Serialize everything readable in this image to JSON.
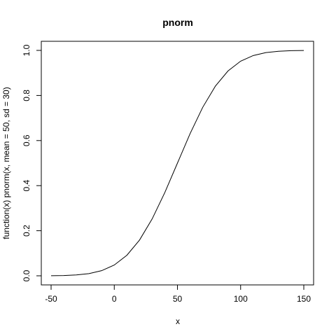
{
  "chart_data": {
    "type": "line",
    "title": "pnorm",
    "xlabel": "x",
    "ylabel": "function(x) pnorm(x, mean = 50, sd = 30)",
    "xlim": [
      -50,
      150
    ],
    "ylim": [
      0,
      1
    ],
    "x_ticks": [
      -50,
      0,
      50,
      100,
      150
    ],
    "y_ticks": [
      0.0,
      0.2,
      0.4,
      0.6,
      0.8,
      1.0
    ],
    "x_tick_labels": [
      "-50",
      "0",
      "50",
      "100",
      "150"
    ],
    "y_tick_labels": [
      "0.0",
      "0.2",
      "0.4",
      "0.6",
      "0.8",
      "1.0"
    ],
    "grid": false,
    "legend": "none",
    "line_color": "#000000",
    "series": [
      {
        "x": [
          -50,
          -40,
          -30,
          -20,
          -10,
          0,
          10,
          20,
          30,
          40,
          50,
          60,
          70,
          80,
          90,
          100,
          110,
          120,
          130,
          140,
          150
        ],
        "y": [
          0.0004,
          0.0013,
          0.0038,
          0.0098,
          0.0228,
          0.0478,
          0.0912,
          0.1587,
          0.2525,
          0.3694,
          0.5,
          0.6306,
          0.7475,
          0.8413,
          0.9088,
          0.9522,
          0.9772,
          0.9902,
          0.9962,
          0.9987,
          0.9996
        ]
      }
    ]
  }
}
